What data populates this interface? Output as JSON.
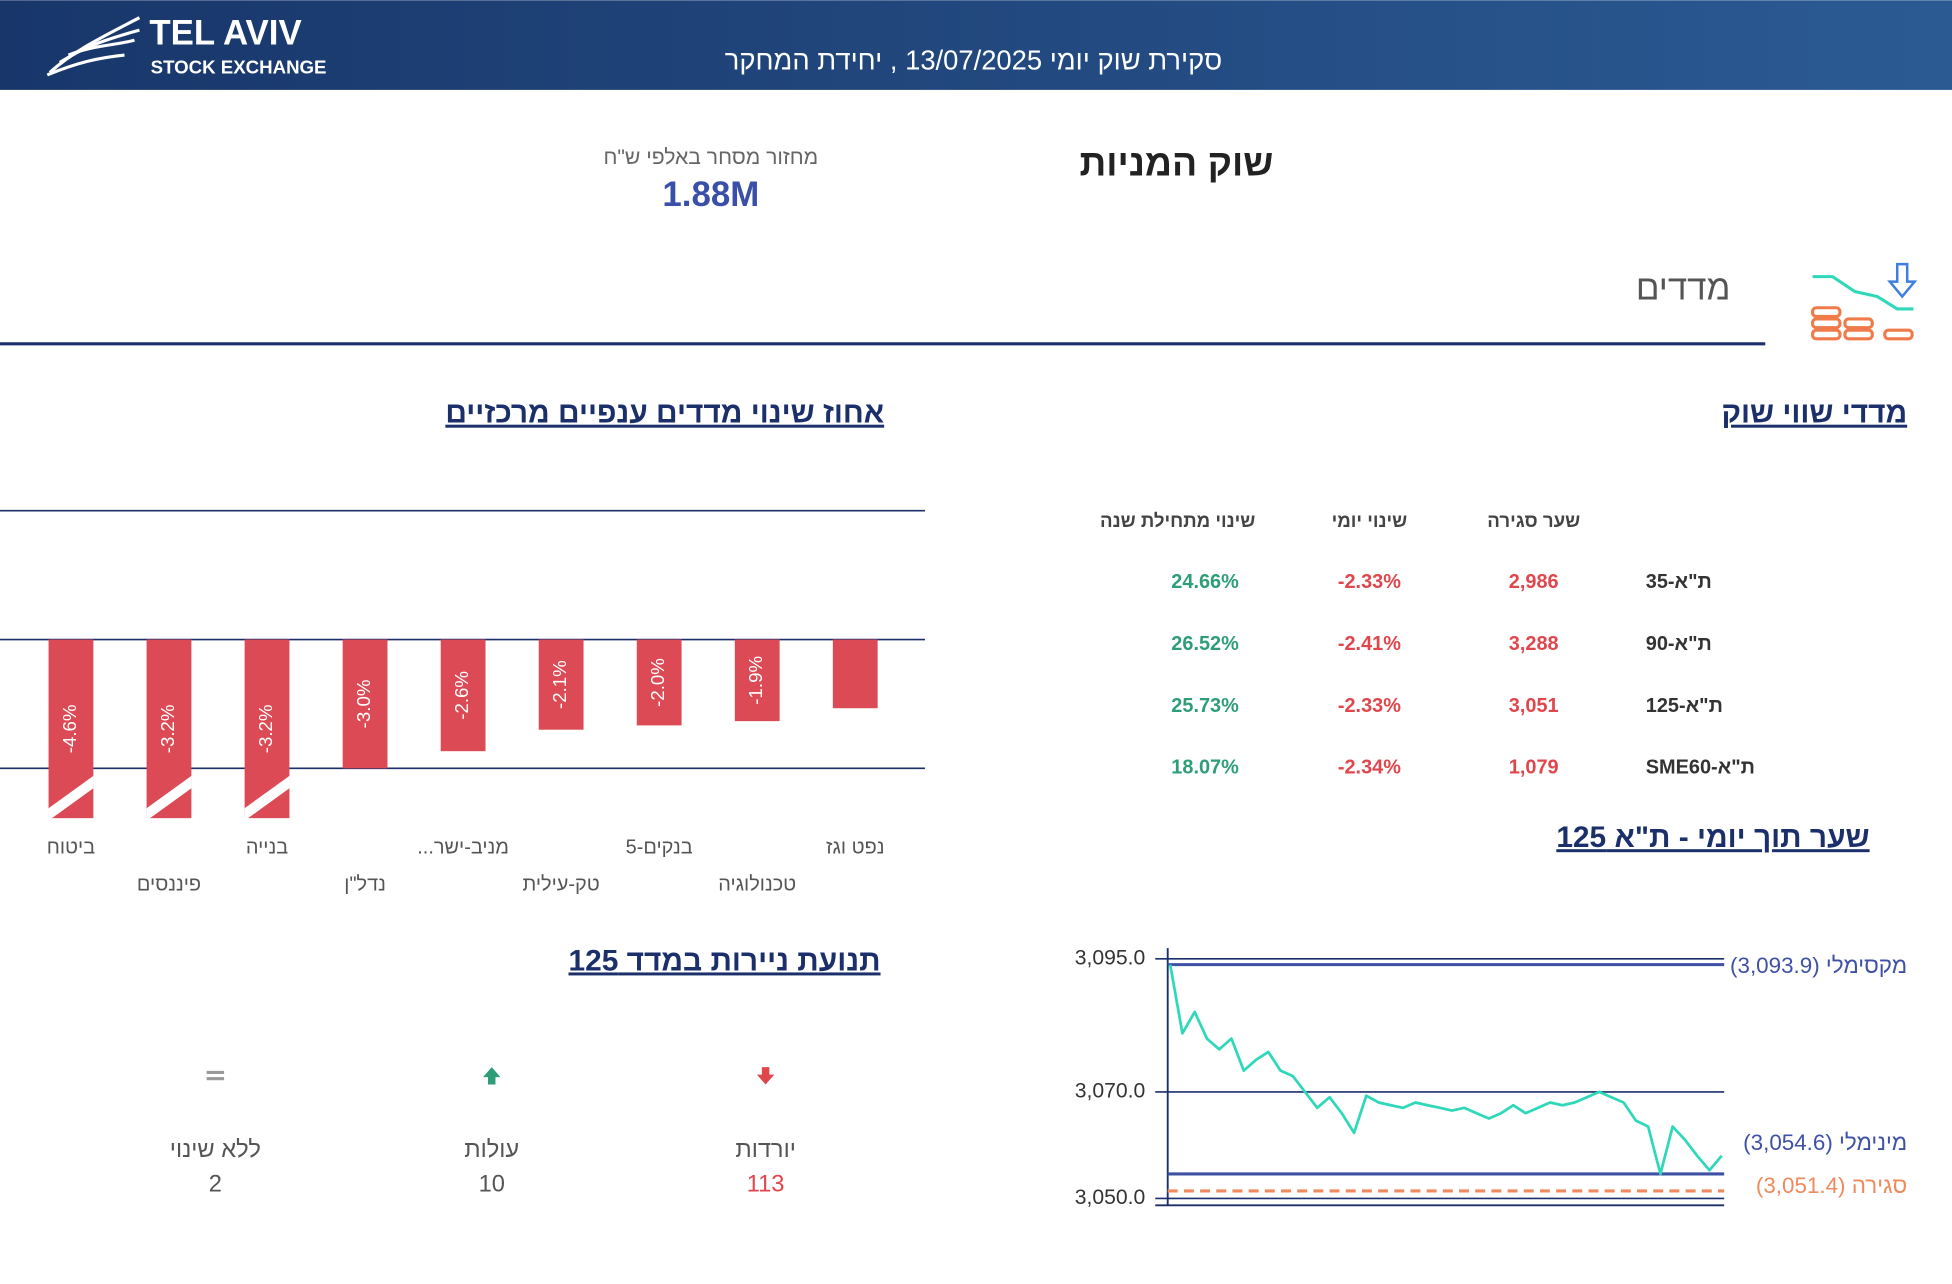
{
  "header": {
    "logo_line1": "TEL AVIV",
    "logo_line2": "STOCK EXCHANGE",
    "title": "סקירת שוק יומי 13/07/2025 , יחידת המחקר"
  },
  "section_title": "שוק המניות",
  "turnover": {
    "label": "מחזור מסחר באלפי ש\"ח",
    "value": "1.88M"
  },
  "indices_heading": "מדדים",
  "market_cap_table": {
    "title": "מדדי שווי שוק",
    "columns": [
      "שער סגירה",
      "שינוי יומי",
      "שינוי מתחילת שנה"
    ],
    "rows": [
      [
        "ת\"א-35",
        "2,986",
        "-2.33%",
        "24.66%"
      ],
      [
        "ת\"א-90",
        "3,288",
        "-2.41%",
        "26.52%"
      ],
      [
        "ת\"א-125",
        "3,051",
        "-2.33%",
        "25.73%"
      ],
      [
        "ת\"א-SME60",
        "1,079",
        "-2.34%",
        "18.07%"
      ]
    ]
  },
  "breadth": {
    "title": "תנועת ניירות במדד 125",
    "items": [
      {
        "label": "יורדות",
        "value": "113"
      },
      {
        "label": "עולות",
        "value": "10"
      },
      {
        "label": "ללא שינוי",
        "value": "2"
      }
    ]
  },
  "chart_data": [
    {
      "type": "bar",
      "title": "אחוז שינוי מדדים ענפיים מרכזיים",
      "categories": [
        "נפט וגז",
        "טכנולוגיה",
        "בנקים-5",
        "טק-עילית",
        "מניב-ישר...",
        "נדל\"ן",
        "בנייה",
        "פיננסים",
        "ביטוח"
      ],
      "values": [
        -1.6,
        -1.9,
        -2.0,
        -2.1,
        -2.6,
        -3.0,
        -3.2,
        -3.2,
        -4.6
      ],
      "value_labels": [
        null,
        "-1.9%",
        "-2.0%",
        "-2.1%",
        "-2.6%",
        "-3.0%",
        "-3.2%",
        "-3.2%",
        "-4.6%"
      ],
      "color": "#dc4b55",
      "ylim": [
        -3,
        3
      ],
      "yticks": [
        -3,
        0,
        3
      ],
      "grid": true
    },
    {
      "type": "line",
      "title": "שער תוך יומי - ת\"א 125",
      "color": "#2fd8b9",
      "values": [
        3093.9,
        3081,
        3085,
        3080,
        3078,
        3080,
        3074,
        3076,
        3077.5,
        3074,
        3073,
        3070,
        3067,
        3069,
        3066,
        3062.3,
        3069.3,
        3068,
        3067.5,
        3067,
        3068,
        3067.5,
        3067,
        3066.5,
        3067,
        3066,
        3065,
        3066,
        3067.5,
        3066,
        3067,
        3068,
        3067.5,
        3068,
        3069,
        3070,
        3069,
        3068,
        3064.6,
        3063.5,
        3054.6,
        3063.5,
        3061,
        3058,
        3055.3,
        3058
      ],
      "reference_lines": [
        {
          "label": "מקסימלי (3,093.9)",
          "value": 3093.9,
          "color": "#3f51a5"
        },
        {
          "label": "מינימלי (3,054.6)",
          "value": 3054.6,
          "color": "#3f51a5"
        },
        {
          "label": "סגירה (3,051.4)",
          "value": 3051.4,
          "color": "#f08a5d",
          "dashed": true
        }
      ],
      "ylim": [
        3048,
        3097
      ],
      "yticks": [
        {
          "value": 3050,
          "label": "3,050.0"
        },
        {
          "value": 3070,
          "label": "3,070.0"
        },
        {
          "value": 3095,
          "label": "3,095.0"
        }
      ],
      "grid": true
    }
  ]
}
